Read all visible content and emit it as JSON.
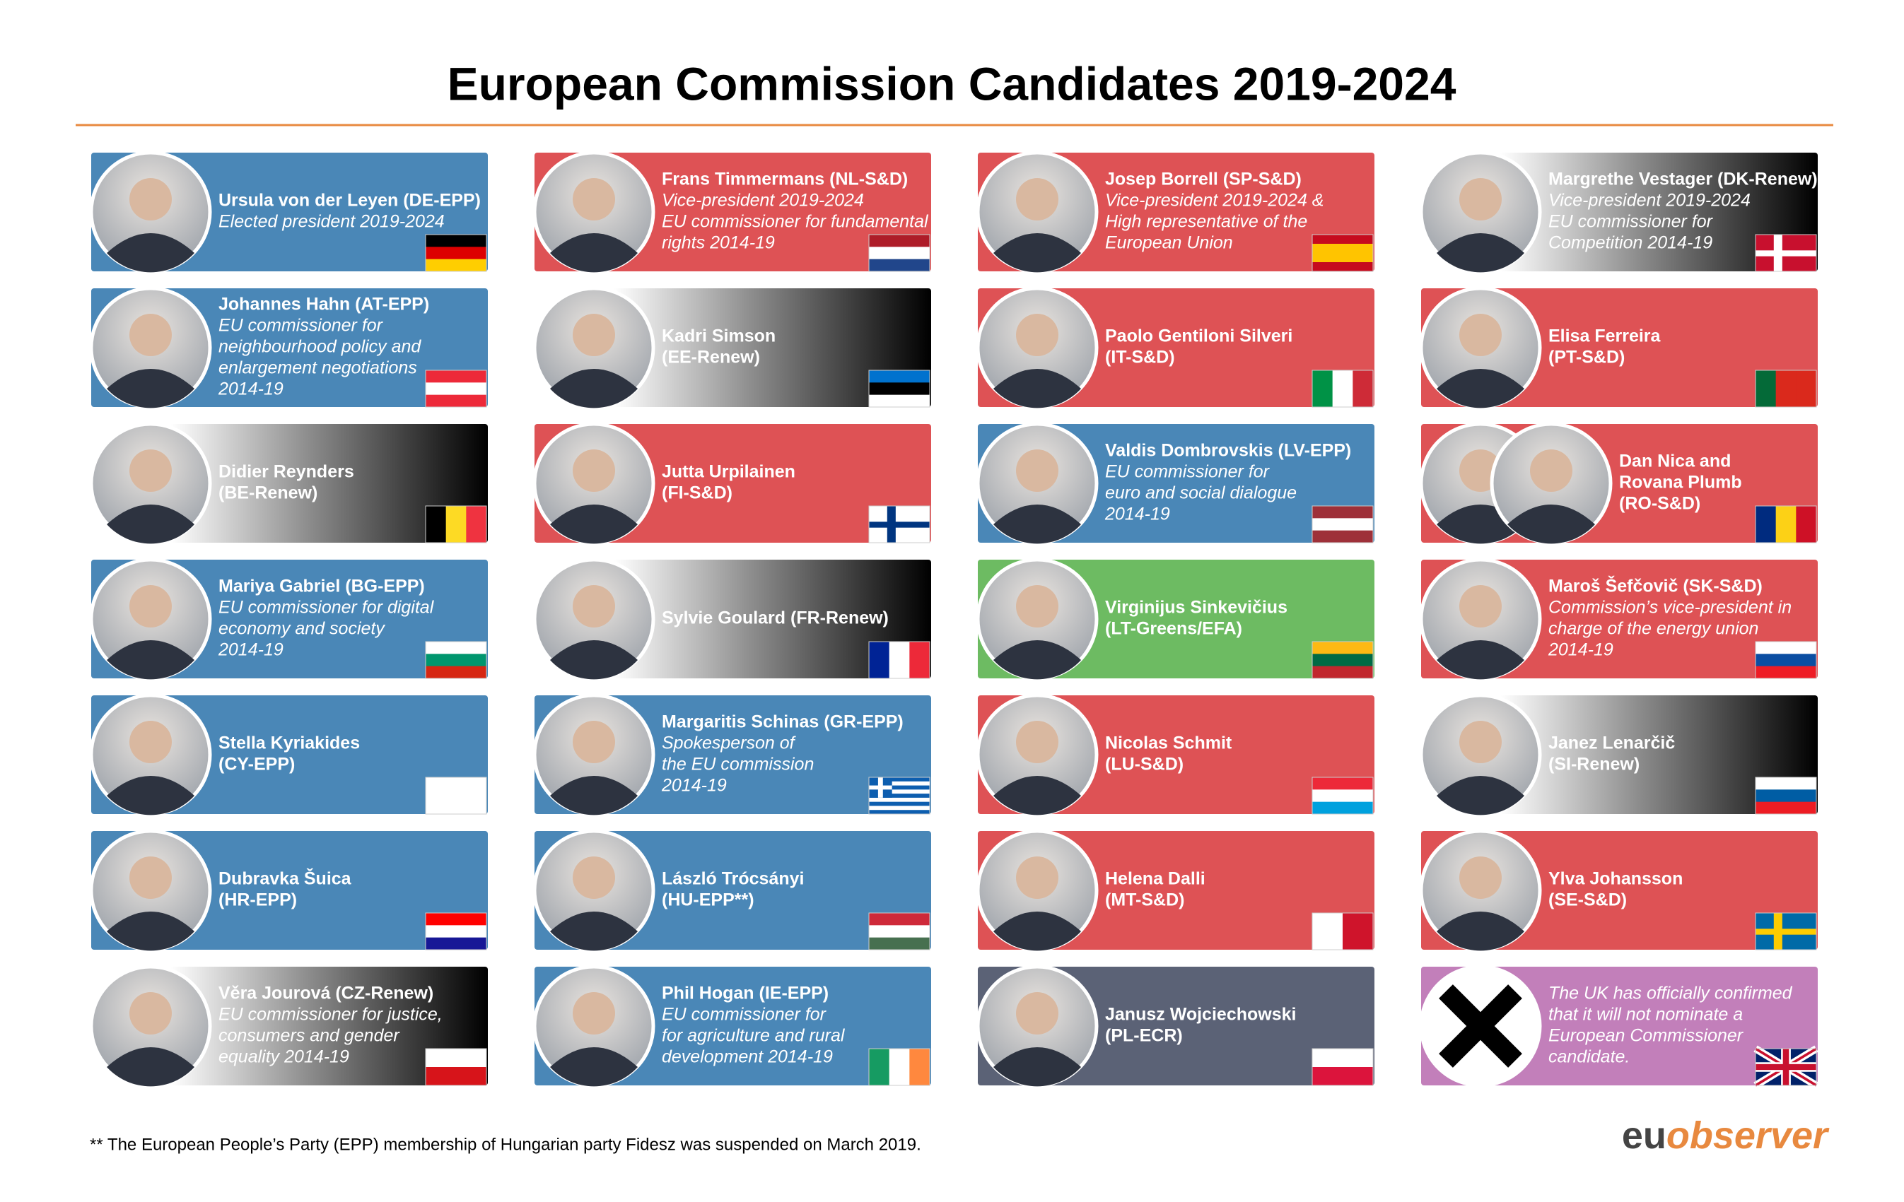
{
  "title": "European Commission Candidates 2019-2024",
  "cards": [
    {
      "name": [
        "Ursula von der Leyen (DE-EPP)"
      ],
      "description": [
        "Elected president 2019-2024"
      ],
      "color": "#4a87b7"
    },
    {
      "name": [
        "Frans Timmermans (NL-S&D)"
      ],
      "description": [
        "Vice-president 2019-2024",
        "EU commissioner for fundamental",
        "rights 2014-19"
      ],
      "color": "#de5255"
    },
    {
      "name": [
        "Josep Borrell (SP-S&D)"
      ],
      "description": [
        "Vice-president 2019-2024 &",
        "High representative of the",
        "European Union"
      ],
      "color": "#de5255"
    },
    {
      "name": [
        "Margrethe Vestager (DK-Renew)"
      ],
      "description": [
        "Vice-president 2019-2024",
        "EU commissioner for",
        "Competition 2014-19"
      ],
      "color": "gradient"
    },
    {
      "name": [
        "Johannes Hahn (AT-EPP)"
      ],
      "description": [
        "EU commissioner for",
        "neighbourhood policy and",
        "enlargement negotiations",
        "2014-19"
      ],
      "color": "#4a87b7"
    },
    {
      "name": [
        "Kadri Simson",
        "(EE-Renew)"
      ],
      "description": [],
      "color": "gradient"
    },
    {
      "name": [
        "Paolo Gentiloni Silveri",
        "(IT-S&D)"
      ],
      "description": [],
      "color": "#de5255"
    },
    {
      "name": [
        "Elisa Ferreira",
        "(PT-S&D)"
      ],
      "description": [],
      "color": "#de5255"
    },
    {
      "name": [
        "Didier Reynders",
        "(BE-Renew)"
      ],
      "description": [],
      "color": "gradient"
    },
    {
      "name": [
        "Jutta Urpilainen",
        "(FI-S&D)"
      ],
      "description": [],
      "color": "#de5255"
    },
    {
      "name": [
        "Valdis Dombrovskis (LV-EPP)"
      ],
      "description": [
        "EU commissioner for",
        "euro and social dialogue",
        "2014-19"
      ],
      "color": "#4a87b7"
    },
    {
      "name": [
        "Dan Nica and",
        "Rovana Plumb",
        "(RO-S&D)"
      ],
      "description": [],
      "color": "#de5255"
    },
    {
      "name": [
        "Mariya Gabriel  (BG-EPP)"
      ],
      "description": [
        "EU commissioner for digital",
        "economy and society",
        "2014-19"
      ],
      "color": "#4a87b7"
    },
    {
      "name": [
        "Sylvie Goulard (FR-Renew)"
      ],
      "description": [],
      "color": "gradient"
    },
    {
      "name": [
        "Virginijus Sinkevičius",
        "(LT-Greens/EFA)"
      ],
      "description": [],
      "color": "#6dbb62"
    },
    {
      "name": [
        "Maroš Šefčovič (SK-S&D)"
      ],
      "description": [
        "Commission’s vice-president in",
        "charge of the energy union",
        "2014-19"
      ],
      "color": "#de5255"
    },
    {
      "name": [
        "Stella Kyriakides",
        "(CY-EPP)"
      ],
      "description": [],
      "color": "#4a87b7"
    },
    {
      "name": [
        "Margaritis Schinas (GR-EPP)"
      ],
      "description": [
        "Spokesperson of",
        "the EU commission",
        "2014-19"
      ],
      "color": "#4a87b7"
    },
    {
      "name": [
        "Nicolas Schmit",
        "(LU-S&D)"
      ],
      "description": [],
      "color": "#de5255"
    },
    {
      "name": [
        "Janez Lenarčič",
        "(SI-Renew)"
      ],
      "description": [],
      "color": "gradient"
    },
    {
      "name": [
        "Dubravka Šuica",
        "(HR-EPP)"
      ],
      "description": [],
      "color": "#4a87b7"
    },
    {
      "name": [
        "László Trócsányi",
        "(HU-EPP**)"
      ],
      "description": [],
      "color": "#4a87b7"
    },
    {
      "name": [
        "Helena Dalli",
        "(MT-S&D)"
      ],
      "description": [],
      "color": "#de5255"
    },
    {
      "name": [
        "Ylva Johansson",
        "(SE-S&D)"
      ],
      "description": [],
      "color": "#de5255"
    },
    {
      "name": [
        "Věra Jourová  (CZ-Renew)"
      ],
      "description": [
        "EU commissioner for justice,",
        "consumers and gender",
        "equality 2014-19"
      ],
      "color": "gradient"
    },
    {
      "name": [
        "Phil Hogan (IE-EPP)"
      ],
      "description": [
        "EU commissioner for",
        "for agriculture and rural",
        "development 2014-19"
      ],
      "color": "#4a87b7"
    },
    {
      "name": [
        "Janusz Wojciechowski",
        "(PL-ECR)"
      ],
      "description": [],
      "color": "#5b6276"
    },
    {
      "name": [],
      "description": [
        "The UK has officially confirmed",
        "that it will not nominate a",
        "European Commissioner",
        "candidate."
      ],
      "color": "#c27fba"
    }
  ],
  "footnote": "** The European People’s Party (EPP) membership of Hungarian party Fidesz was suspended on March 2019.",
  "logo": {
    "eu": "eu",
    "observer": "observer"
  }
}
